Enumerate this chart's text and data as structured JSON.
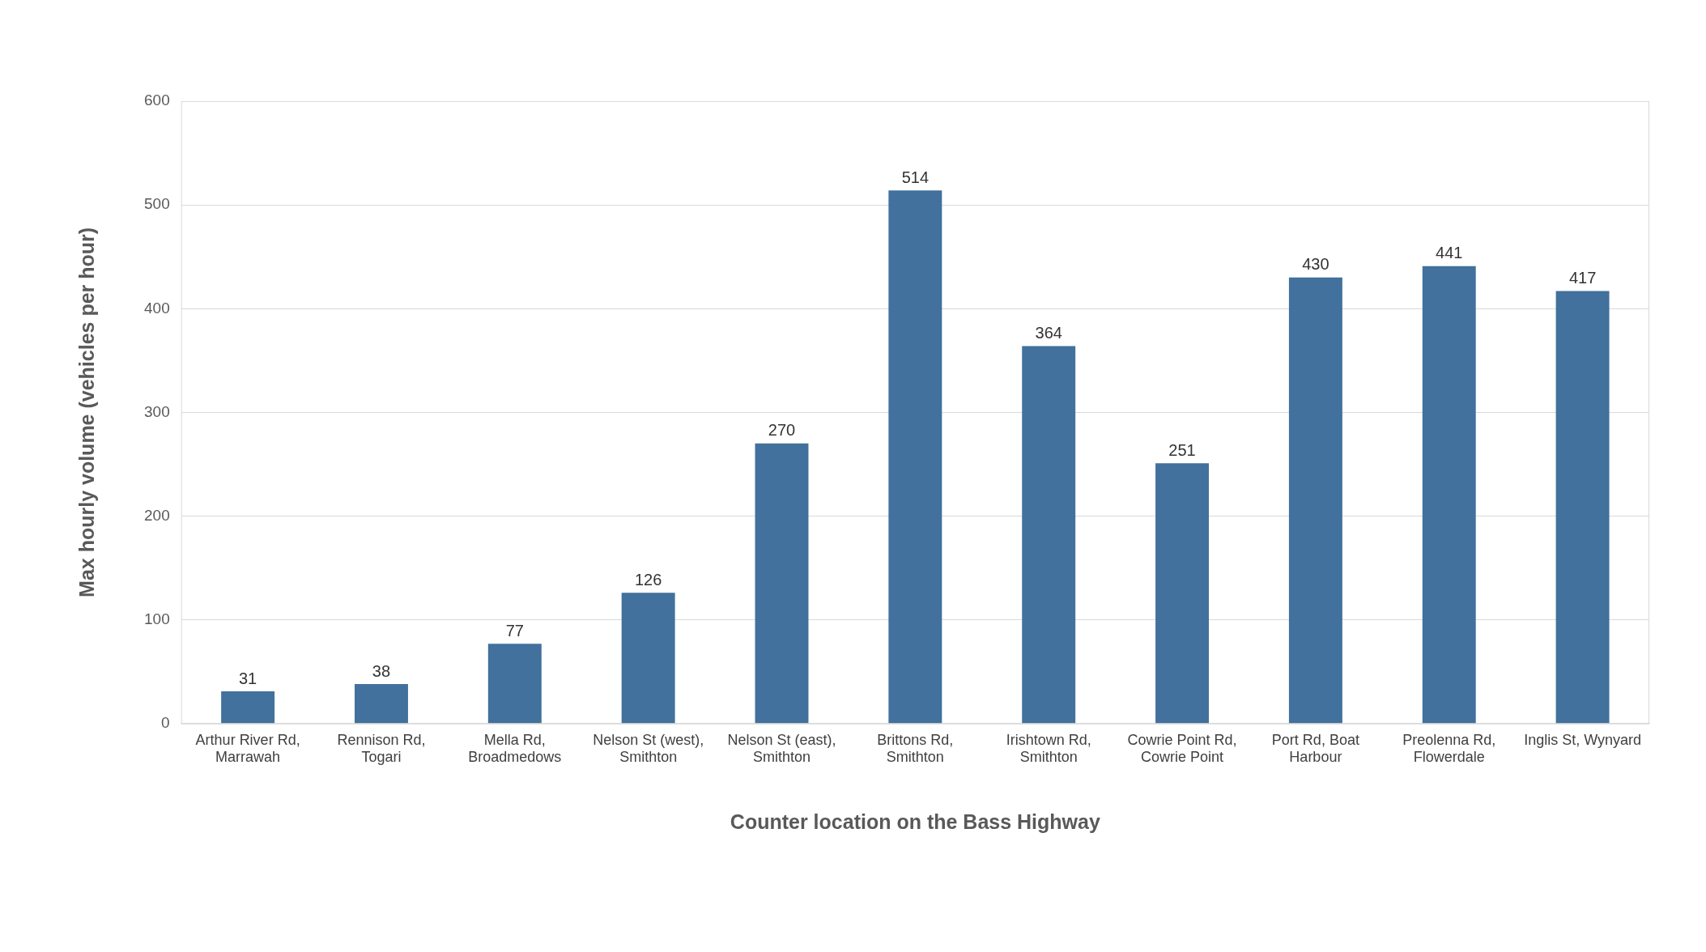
{
  "chart_data": {
    "type": "bar",
    "xlabel": "Counter location on the Bass Highway",
    "ylabel": "Max hourly volume (vehicles per hour)",
    "categories": [
      "Arthur River Rd, Marrawah",
      "Rennison Rd, Togari",
      "Mella Rd, Broadmedows",
      "Nelson St (west), Smithton",
      "Nelson St (east), Smithton",
      "Brittons Rd, Smithton",
      "Irishtown Rd, Smithton",
      "Cowrie Point Rd, Cowrie Point",
      "Port Rd, Boat Harbour",
      "Preolenna Rd, Flowerdale",
      "Inglis St, Wynyard"
    ],
    "values": [
      31,
      38,
      77,
      126,
      270,
      514,
      364,
      251,
      430,
      441,
      417
    ],
    "color": "#41719c",
    "ylim": [
      0,
      600
    ],
    "yticks": [
      0,
      100,
      200,
      300,
      400,
      500,
      600
    ],
    "grid": "y",
    "data_labels": true,
    "legend": false
  }
}
